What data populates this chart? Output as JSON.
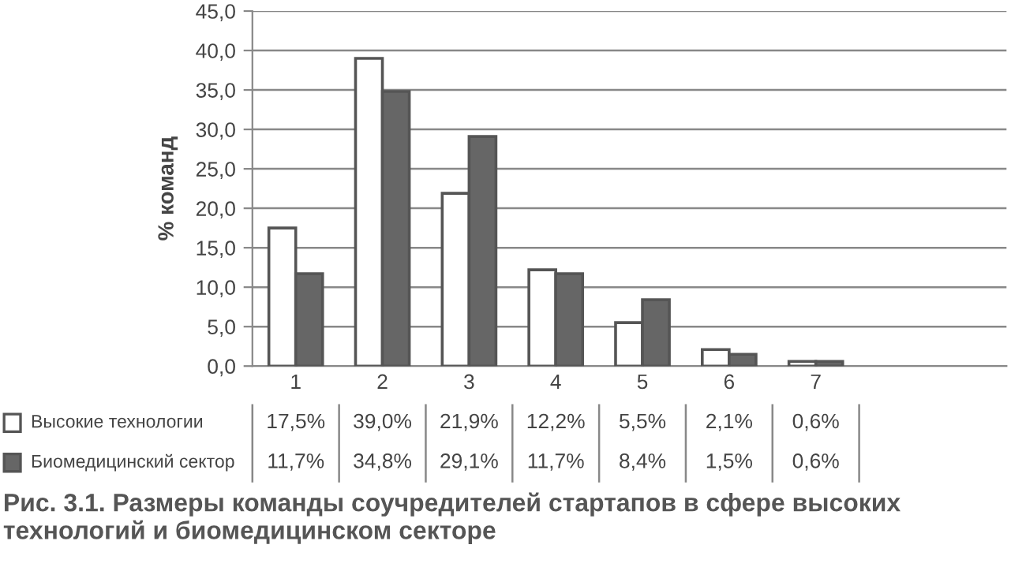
{
  "chart_data": {
    "type": "bar",
    "title": "Рис. 3.1. Размеры команды соучредителей стартапов в сфере высоких технологий и биомедицинском секторе",
    "ylabel": "% команд",
    "categories": [
      "1",
      "2",
      "3",
      "4",
      "5",
      "6",
      "7"
    ],
    "series": [
      {
        "name": "Высокие технологии",
        "color": "#ffffff",
        "values": [
          17.5,
          39.0,
          21.9,
          12.2,
          5.5,
          2.1,
          0.6
        ],
        "value_labels": [
          "17,5%",
          "39,0%",
          "21,9%",
          "12,2%",
          "5,5%",
          "2,1%",
          "0,6%"
        ]
      },
      {
        "name": "Биомедицинский сектор",
        "color": "#666666",
        "values": [
          11.7,
          34.8,
          29.1,
          11.7,
          8.4,
          1.5,
          0.6
        ],
        "value_labels": [
          "11,7%",
          "34,8%",
          "29,1%",
          "11,7%",
          "8,4%",
          "1,5%",
          "0,6%"
        ]
      }
    ],
    "ylim": [
      0,
      45
    ],
    "yticks": [
      {
        "value": 0,
        "label": "0,0"
      },
      {
        "value": 5,
        "label": "5,0"
      },
      {
        "value": 10,
        "label": "10,0"
      },
      {
        "value": 15,
        "label": "15,0"
      },
      {
        "value": 20,
        "label": "20,0"
      },
      {
        "value": 25,
        "label": "25,0"
      },
      {
        "value": 30,
        "label": "30,0"
      },
      {
        "value": 35,
        "label": "35,0"
      },
      {
        "value": 40,
        "label": "40,0"
      },
      {
        "value": 45,
        "label": "45,0"
      }
    ],
    "grid": "y",
    "legend": "bottom"
  }
}
